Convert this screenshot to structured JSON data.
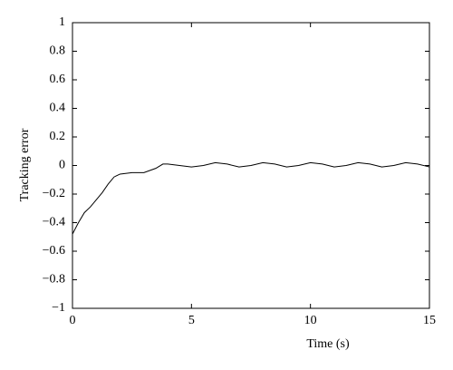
{
  "chart_data": {
    "type": "line",
    "xlabel": "Time (s)",
    "ylabel": "Tracking error",
    "x": [
      0,
      0.25,
      0.5,
      0.75,
      1.0,
      1.25,
      1.5,
      1.75,
      2.0,
      2.5,
      3.0,
      3.5,
      3.8,
      4.0,
      4.5,
      5.0,
      5.5,
      6.0,
      6.5,
      7.0,
      7.5,
      8.0,
      8.5,
      9.0,
      9.5,
      10.0,
      10.5,
      11.0,
      11.5,
      12.0,
      12.5,
      13.0,
      13.5,
      14.0,
      14.5,
      15.0
    ],
    "series": [
      {
        "color": "#000000",
        "values": [
          -0.48,
          -0.4,
          -0.33,
          -0.29,
          -0.24,
          -0.19,
          -0.13,
          -0.08,
          -0.06,
          -0.05,
          -0.05,
          -0.02,
          0.01,
          0.01,
          0.0,
          -0.01,
          0.0,
          0.02,
          0.01,
          -0.01,
          0.0,
          0.02,
          0.01,
          -0.01,
          0.0,
          0.02,
          0.01,
          -0.01,
          0.0,
          0.02,
          0.01,
          -0.01,
          0.0,
          0.02,
          0.01,
          -0.01
        ]
      }
    ],
    "xlim": [
      0,
      15
    ],
    "xticks": [
      0,
      5,
      10,
      15
    ],
    "ylim": [
      -1,
      1
    ],
    "yticks": [
      {
        "value": -1,
        "label": "−1"
      },
      {
        "value": -0.8,
        "label": "−0.8"
      },
      {
        "value": -0.6,
        "label": "−0.6"
      },
      {
        "value": -0.4,
        "label": "−0.4"
      },
      {
        "value": -0.2,
        "label": "−0.2"
      },
      0,
      0.2,
      0.4,
      0.6,
      0.8,
      1
    ],
    "grid": false
  }
}
